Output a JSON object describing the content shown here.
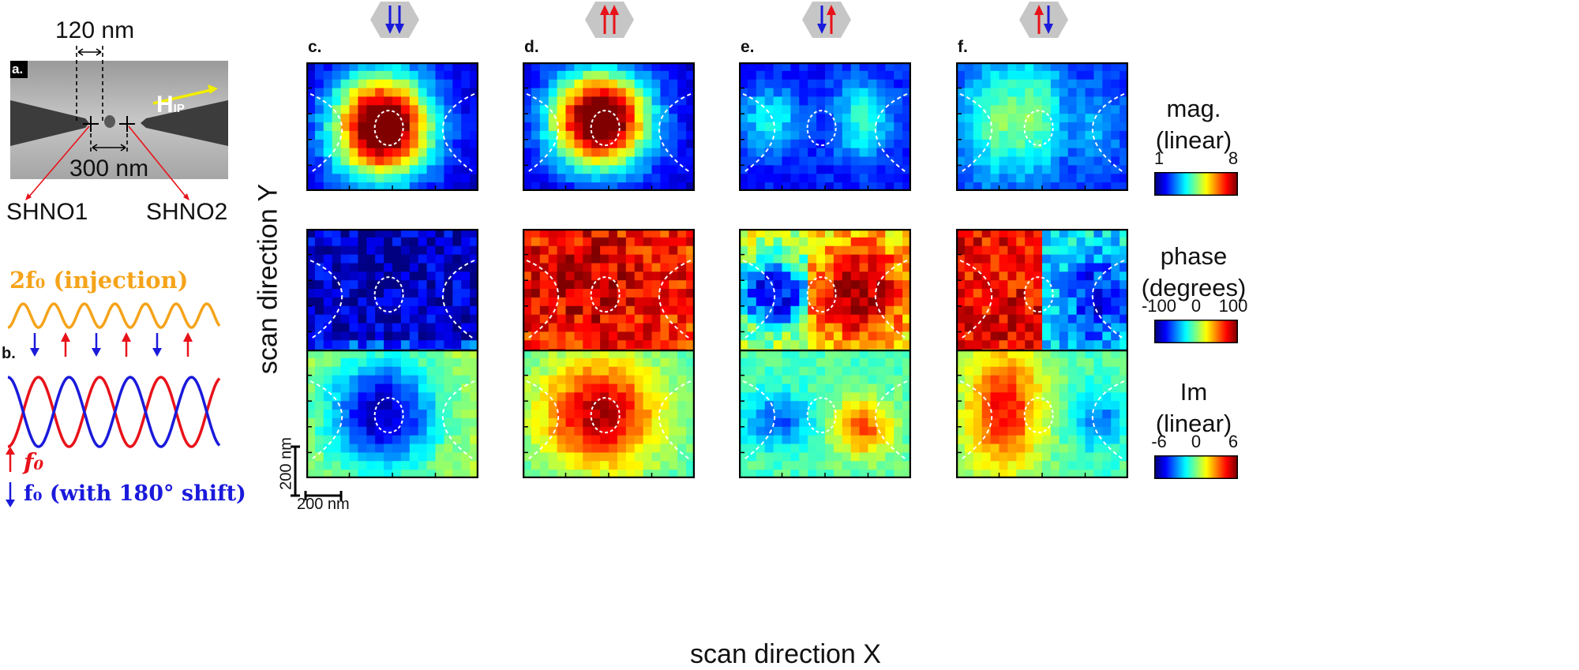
{
  "left": {
    "sem": {
      "panel_label": "a.",
      "gap_label": "120 nm",
      "spacing_label": "300 nm",
      "field_label": "H",
      "field_sub": "IP",
      "left_device": "SHNO1",
      "right_device": "SHNO2"
    },
    "waves": {
      "panel_label": "b.",
      "injection_label": "2f₀ (injection)",
      "f0_label": "f₀",
      "f0_shift_label": "f₀ (with 180° shift)"
    },
    "scale": {
      "vertical_label": "200 nm",
      "horizontal_label": "200 nm"
    }
  },
  "axes": {
    "y_label": "scan direction Y",
    "x_label": "scan direction X"
  },
  "columns": [
    {
      "label": "c.",
      "arrows": [
        "down",
        "down"
      ]
    },
    {
      "label": "d.",
      "arrows": [
        "up",
        "up"
      ]
    },
    {
      "label": "e.",
      "arrows": [
        "down",
        "up"
      ]
    },
    {
      "label": "f.",
      "arrows": [
        "up",
        "down"
      ]
    }
  ],
  "rows": [
    "magnitude",
    "phase",
    "imaginary"
  ],
  "colorbars": [
    {
      "title_line1": "mag.",
      "title_line2": "(linear)",
      "ticks": [
        "1",
        "8"
      ]
    },
    {
      "title_line1": "phase",
      "title_line2": "(degrees)",
      "ticks": [
        "-100",
        "0",
        "100"
      ]
    },
    {
      "title_line1": "Im",
      "title_line2": "(linear)",
      "ticks": [
        "-6",
        "0",
        "6"
      ]
    }
  ],
  "colors": {
    "up_arrow": "#e8121a",
    "down_arrow": "#1a1adb",
    "injection_wave": "#f5a31a",
    "field_arrow": "#f2ee00"
  }
}
